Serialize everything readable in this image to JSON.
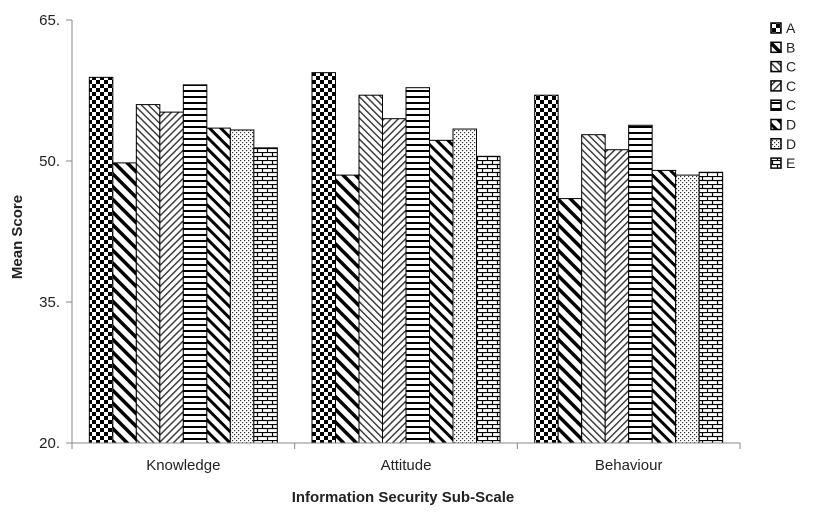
{
  "chart_data": {
    "type": "bar",
    "xlabel": "Information Security Sub-Scale",
    "ylabel": "Mean Score",
    "ylim": [
      20,
      65
    ],
    "yticks": [
      "20.",
      "35.",
      "50.",
      "65."
    ],
    "categories": [
      "Knowledge",
      "Attitude",
      "Behaviour"
    ],
    "grid": false,
    "legend_position": "right",
    "series": [
      {
        "name": "A",
        "pattern": "checker",
        "values": [
          58.9,
          59.4,
          57.0
        ]
      },
      {
        "name": "B",
        "pattern": "diag-back",
        "values": [
          49.8,
          48.5,
          46.0
        ]
      },
      {
        "name": "C",
        "pattern": "diag-back-fine",
        "values": [
          56.0,
          57.0,
          52.8
        ]
      },
      {
        "name": "C",
        "pattern": "diag-fwd",
        "values": [
          55.2,
          54.5,
          51.2
        ]
      },
      {
        "name": "C",
        "pattern": "horizontal",
        "values": [
          58.1,
          57.8,
          53.8
        ]
      },
      {
        "name": "D",
        "pattern": "diag-back-bold",
        "values": [
          53.5,
          52.2,
          49.0
        ]
      },
      {
        "name": "D",
        "pattern": "dots",
        "values": [
          53.3,
          53.4,
          48.5
        ]
      },
      {
        "name": "E",
        "pattern": "brick",
        "values": [
          51.4,
          50.5,
          48.8
        ]
      }
    ]
  }
}
